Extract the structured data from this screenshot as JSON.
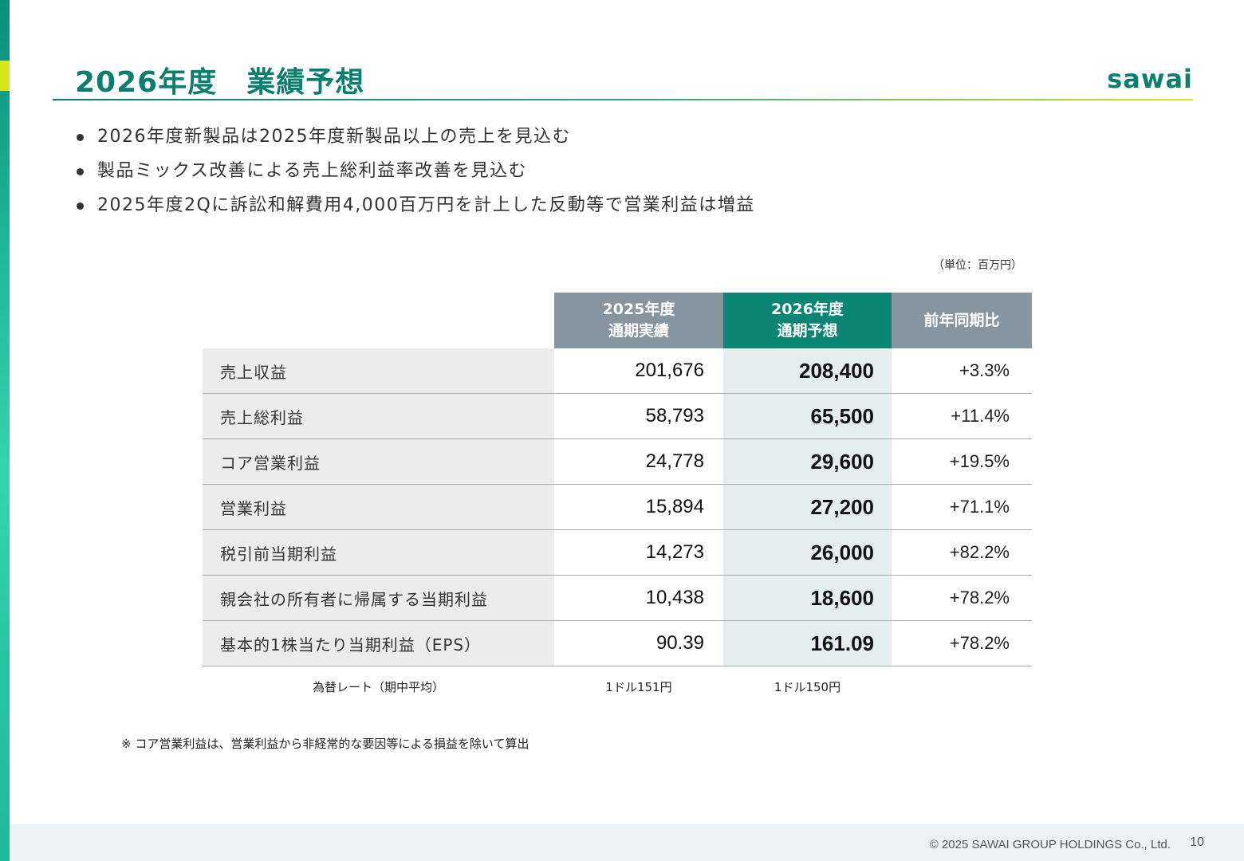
{
  "slide": {
    "title": "2026年度　業績予想",
    "logo_text": "sawai",
    "bullets": [
      "2026年度新製品は2025年度新製品以上の売上を見込む",
      "製品ミックス改善による売上総利益率改善を見込む",
      "2025年度2Qに訴訟和解費用4,000百万円を計上した反動等で営業利益は増益"
    ],
    "unit_note": "（単位：百万円）",
    "table": {
      "headers": {
        "actual_line1": "2025年度",
        "actual_line2": "通期実績",
        "forecast_line1": "2026年度",
        "forecast_line2": "通期予想",
        "yoy": "前年同期比"
      },
      "rows": [
        {
          "label": "売上収益",
          "actual": "201,676",
          "forecast": "208,400",
          "yoy": "+3.3%"
        },
        {
          "label": "売上総利益",
          "actual": "58,793",
          "forecast": "65,500",
          "yoy": "+11.4%"
        },
        {
          "label": "コア営業利益",
          "actual": "24,778",
          "forecast": "29,600",
          "yoy": "+19.5%"
        },
        {
          "label": "営業利益",
          "actual": "15,894",
          "forecast": "27,200",
          "yoy": "+71.1%"
        },
        {
          "label": "税引前当期利益",
          "actual": "14,273",
          "forecast": "26,000",
          "yoy": "+82.2%"
        },
        {
          "label": "親会社の所有者に帰属する当期利益",
          "actual": "10,438",
          "forecast": "18,600",
          "yoy": "+78.2%"
        },
        {
          "label": "基本的1株当たり当期利益（EPS）",
          "actual": "90.39",
          "forecast": "161.09",
          "yoy": "+78.2%"
        }
      ],
      "fx": {
        "label": "為替レート（期中平均）",
        "actual": "1ドル151円",
        "forecast": "1ドル150円"
      }
    },
    "footnote": "※ コア営業利益は、営業利益から非経常的な要因等による損益を除いて算出",
    "copyright": "© 2025 SAWAI GROUP HOLDINGS Co., Ltd.",
    "page_number": "10"
  }
}
